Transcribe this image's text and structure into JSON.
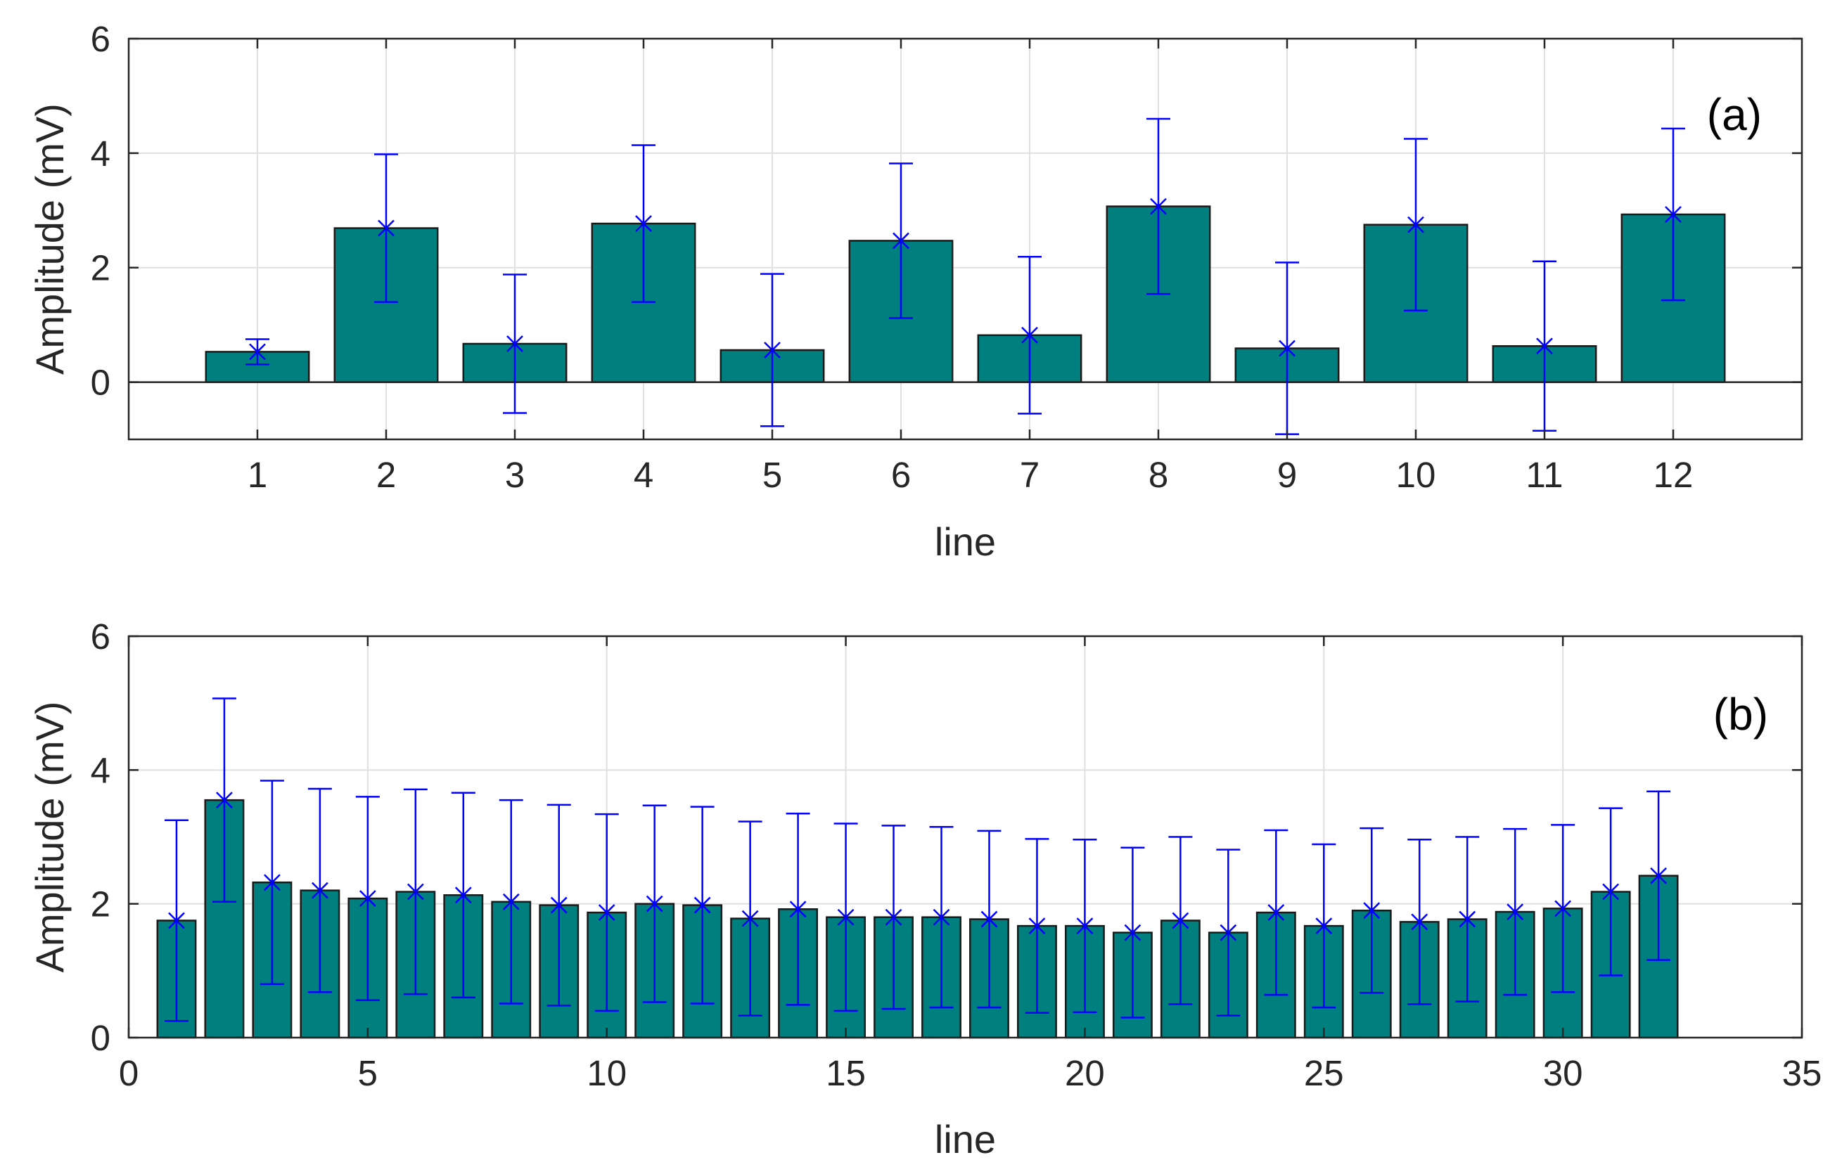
{
  "colors": {
    "bar_fill": "#007f7f",
    "bar_edge": "#1a1a1a",
    "error": "#0000ff",
    "grid": "#e0e0e0",
    "axis": "#262626",
    "zero_line": "#262626"
  },
  "chart_data": [
    {
      "type": "bar",
      "panel_label": "(a)",
      "xlabel": "line",
      "ylabel": "Amplitude (mV)",
      "xlim": [
        0,
        13
      ],
      "ylim": [
        -1,
        6
      ],
      "xticks": [
        1,
        2,
        3,
        4,
        5,
        6,
        7,
        8,
        9,
        10,
        11,
        12
      ],
      "xtick_labels": [
        "1",
        "2",
        "3",
        "4",
        "5",
        "6",
        "7",
        "8",
        "9",
        "10",
        "11",
        "12"
      ],
      "yticks": [
        0,
        2,
        4,
        6
      ],
      "ytick_labels": [
        "0",
        "2",
        "4",
        "6"
      ],
      "grid": true,
      "bar_width": 0.8,
      "x": [
        1,
        2,
        3,
        4,
        5,
        6,
        7,
        8,
        9,
        10,
        11,
        12
      ],
      "values": [
        0.53,
        2.69,
        0.67,
        2.77,
        0.56,
        2.47,
        0.82,
        3.07,
        0.59,
        2.75,
        0.63,
        2.93
      ],
      "errors": [
        0.22,
        1.29,
        1.21,
        1.37,
        1.33,
        1.35,
        1.37,
        1.53,
        1.5,
        1.5,
        1.48,
        1.5
      ]
    },
    {
      "type": "bar",
      "panel_label": "(b)",
      "xlabel": "line",
      "ylabel": "Amplitude (mV)",
      "xlim": [
        0,
        35
      ],
      "ylim": [
        0,
        6
      ],
      "xticks": [
        0,
        5,
        10,
        15,
        20,
        25,
        30,
        35
      ],
      "xtick_labels": [
        "0",
        "5",
        "10",
        "15",
        "20",
        "25",
        "30",
        "35"
      ],
      "yticks": [
        0,
        2,
        4,
        6
      ],
      "ytick_labels": [
        "0",
        "2",
        "4",
        "6"
      ],
      "grid": true,
      "bar_width": 0.8,
      "x": [
        1,
        2,
        3,
        4,
        5,
        6,
        7,
        8,
        9,
        10,
        11,
        12,
        13,
        14,
        15,
        16,
        17,
        18,
        19,
        20,
        21,
        22,
        23,
        24,
        25,
        26,
        27,
        28,
        29,
        30,
        31,
        32
      ],
      "values": [
        1.75,
        3.55,
        2.32,
        2.2,
        2.08,
        2.18,
        2.13,
        2.03,
        1.98,
        1.87,
        2.0,
        1.98,
        1.78,
        1.92,
        1.8,
        1.8,
        1.8,
        1.77,
        1.67,
        1.67,
        1.57,
        1.75,
        1.57,
        1.87,
        1.67,
        1.9,
        1.73,
        1.77,
        1.88,
        1.93,
        2.18,
        2.42
      ],
      "errors": [
        1.5,
        1.52,
        1.52,
        1.52,
        1.52,
        1.53,
        1.53,
        1.52,
        1.5,
        1.47,
        1.47,
        1.47,
        1.45,
        1.43,
        1.4,
        1.37,
        1.35,
        1.32,
        1.3,
        1.29,
        1.27,
        1.25,
        1.24,
        1.23,
        1.22,
        1.23,
        1.23,
        1.23,
        1.24,
        1.25,
        1.25,
        1.26
      ]
    }
  ]
}
